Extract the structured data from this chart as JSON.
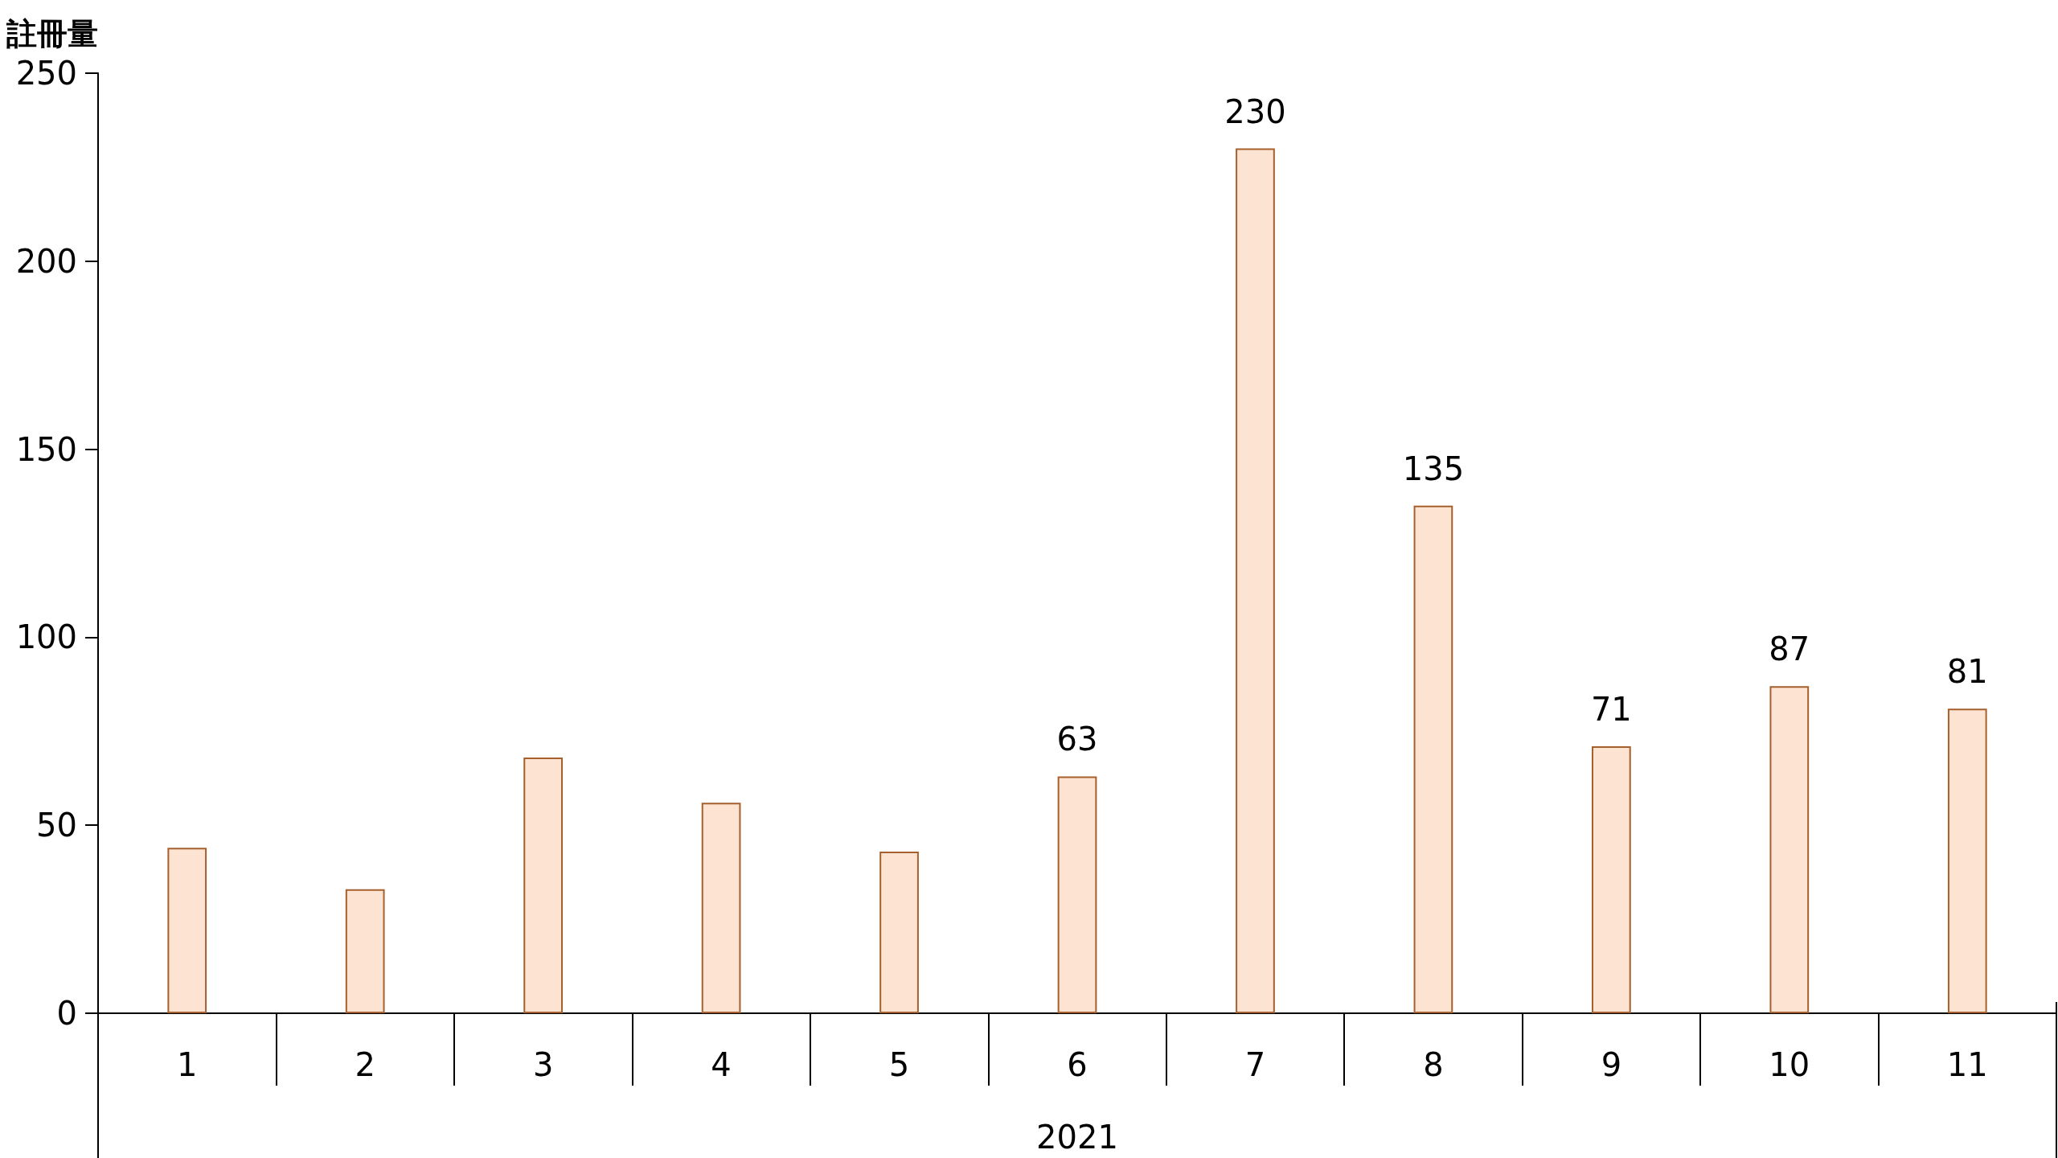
{
  "chart_data": {
    "type": "bar",
    "ylabel": "註冊量",
    "xlabel": "2021",
    "categories": [
      "1",
      "2",
      "3",
      "4",
      "5",
      "6",
      "7",
      "8",
      "9",
      "10",
      "11"
    ],
    "values": [
      44,
      33,
      68,
      56,
      43,
      63,
      230,
      135,
      71,
      87,
      81
    ],
    "value_labels": [
      null,
      null,
      null,
      null,
      null,
      "63",
      "230",
      "135",
      "71",
      "87",
      "81"
    ],
    "color": "#fde4d2",
    "ylim": [
      0,
      250
    ],
    "yticks": [
      0,
      50,
      100,
      150,
      200,
      250
    ],
    "grid": false
  }
}
